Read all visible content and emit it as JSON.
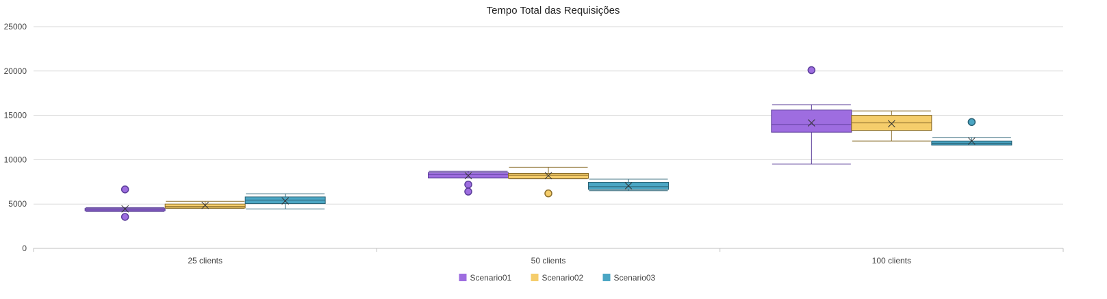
{
  "chart_data": {
    "type": "boxplot",
    "title": "Tempo Total das Requisições",
    "categories": [
      "25 clients",
      "50 clients",
      "100 clients"
    ],
    "ylim": [
      0,
      25000
    ],
    "yticks": [
      0,
      5000,
      10000,
      15000,
      20000,
      25000
    ],
    "grid": true,
    "legend_position": "bottom",
    "series": [
      {
        "name": "Scenario01",
        "color": "#9e6de0",
        "stroke": "#5a3d99",
        "boxes": [
          {
            "min": 4150,
            "q1": 4250,
            "median": 4400,
            "q3": 4500,
            "max": 4600,
            "mean": 4450,
            "outliers": [
              6650,
              3550
            ]
          },
          {
            "min": 7950,
            "q1": 7950,
            "median": 8300,
            "q3": 8550,
            "max": 8700,
            "mean": 8200,
            "outliers": [
              7200,
              6400
            ]
          },
          {
            "min": 9500,
            "q1": 13100,
            "median": 13950,
            "q3": 15600,
            "max": 16200,
            "mean": 14150,
            "outliers": [
              20100
            ]
          }
        ]
      },
      {
        "name": "Scenario02",
        "color": "#f5cd6b",
        "stroke": "#8a6d2a",
        "boxes": [
          {
            "min": 4500,
            "q1": 4550,
            "median": 4750,
            "q3": 5000,
            "max": 5300,
            "mean": 4850,
            "outliers": []
          },
          {
            "min": 7850,
            "q1": 7900,
            "median": 8250,
            "q3": 8450,
            "max": 9150,
            "mean": 8200,
            "outliers": [
              6200
            ]
          },
          {
            "min": 12100,
            "q1": 13300,
            "median": 14150,
            "q3": 15000,
            "max": 15500,
            "mean": 14050,
            "outliers": []
          }
        ]
      },
      {
        "name": "Scenario03",
        "color": "#4ba6c4",
        "stroke": "#2a6275",
        "boxes": [
          {
            "min": 4450,
            "q1": 5050,
            "median": 5450,
            "q3": 5800,
            "max": 6150,
            "mean": 5350,
            "outliers": []
          },
          {
            "min": 6500,
            "q1": 6650,
            "median": 6950,
            "q3": 7450,
            "max": 7800,
            "mean": 7050,
            "outliers": []
          },
          {
            "min": 11650,
            "q1": 11650,
            "median": 11850,
            "q3": 12100,
            "max": 12500,
            "mean": 12100,
            "outliers": [
              14250
            ]
          }
        ]
      }
    ]
  }
}
